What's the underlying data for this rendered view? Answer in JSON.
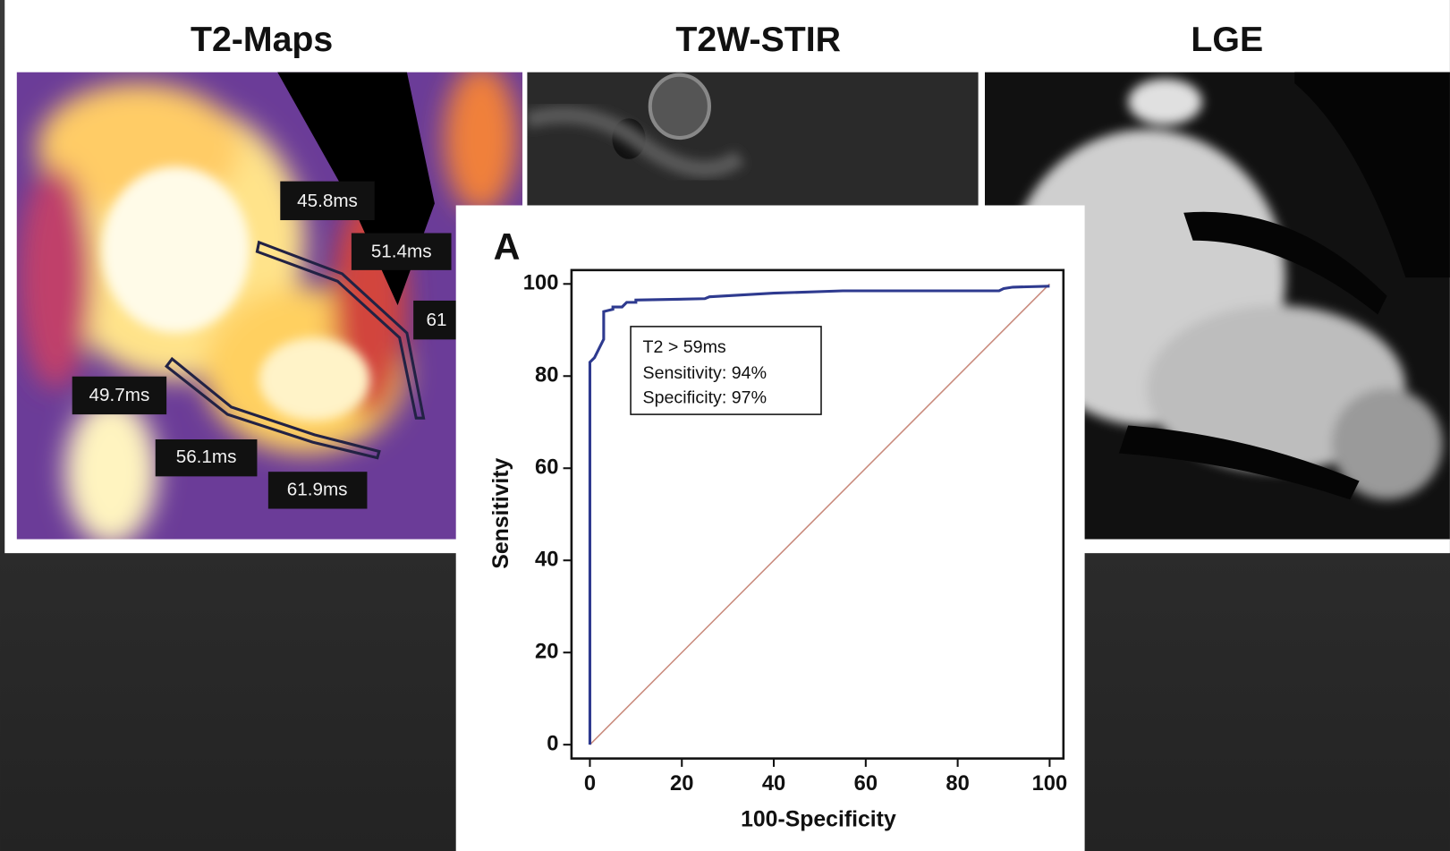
{
  "panel_titles": [
    "T2-Maps",
    "T2W-STIR",
    "LGE"
  ],
  "t2_map_labels": [
    "45.8ms",
    "51.4ms",
    "61",
    "49.7ms",
    "56.1ms",
    "61.9ms"
  ],
  "chart_data": {
    "type": "line",
    "panel_label": "A",
    "xlabel": "100-Specificity",
    "ylabel": "Sensitivity",
    "annotation": [
      "T2 > 59ms",
      "Sensitivity: 94%",
      "Specificity: 97%"
    ],
    "xlim": [
      -4,
      103
    ],
    "ylim": [
      -3,
      103
    ],
    "xticks": [
      0,
      20,
      40,
      60,
      80,
      100
    ],
    "yticks": [
      0,
      20,
      40,
      60,
      80,
      100
    ],
    "series": [
      {
        "color": "#2e3a8f",
        "x": [
          0,
          0,
          1,
          3,
          3,
          5,
          5,
          7,
          8,
          10,
          10,
          25,
          26,
          40,
          55,
          89,
          90,
          92,
          100
        ],
        "values": [
          0,
          83,
          84,
          88,
          94,
          94.5,
          95,
          95,
          96,
          96,
          96.5,
          96.8,
          97.2,
          98,
          98.5,
          98.5,
          99,
          99.3,
          99.5
        ]
      },
      {
        "color": "#c98a7c",
        "x": [
          0,
          100
        ],
        "values": [
          0,
          100
        ]
      }
    ]
  }
}
